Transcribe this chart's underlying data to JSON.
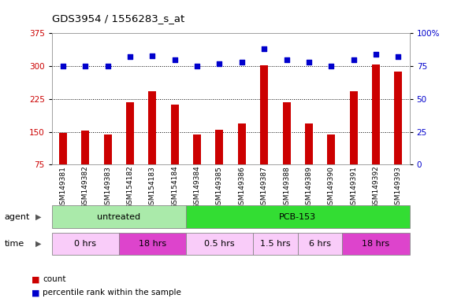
{
  "title": "GDS3954 / 1556283_s_at",
  "samples": [
    "GSM149381",
    "GSM149382",
    "GSM149383",
    "GSM154182",
    "GSM154183",
    "GSM154184",
    "GSM149384",
    "GSM149385",
    "GSM149386",
    "GSM149387",
    "GSM149388",
    "GSM149389",
    "GSM149390",
    "GSM149391",
    "GSM149392",
    "GSM149393"
  ],
  "counts": [
    148,
    153,
    143,
    218,
    242,
    212,
    143,
    155,
    168,
    302,
    218,
    168,
    143,
    242,
    303,
    288
  ],
  "percentile_ranks": [
    75,
    75,
    75,
    82,
    83,
    80,
    75,
    77,
    78,
    88,
    80,
    78,
    75,
    80,
    84,
    82
  ],
  "ylim_left": [
    75,
    375
  ],
  "yticks_left": [
    75,
    150,
    225,
    300,
    375
  ],
  "ylim_right": [
    0,
    100
  ],
  "yticks_right": [
    0,
    25,
    50,
    75,
    100
  ],
  "bar_color": "#cc0000",
  "dot_color": "#0000cc",
  "agent_groups": [
    {
      "label": "untreated",
      "start": 0,
      "end": 6,
      "color": "#aaeaaa"
    },
    {
      "label": "PCB-153",
      "start": 6,
      "end": 16,
      "color": "#33dd33"
    }
  ],
  "time_groups": [
    {
      "label": "0 hrs",
      "start": 0,
      "end": 3,
      "color": "#f9ccf9"
    },
    {
      "label": "18 hrs",
      "start": 3,
      "end": 6,
      "color": "#dd44cc"
    },
    {
      "label": "0.5 hrs",
      "start": 6,
      "end": 9,
      "color": "#f9ccf9"
    },
    {
      "label": "1.5 hrs",
      "start": 9,
      "end": 11,
      "color": "#f9ccf9"
    },
    {
      "label": "6 hrs",
      "start": 11,
      "end": 13,
      "color": "#f9ccf9"
    },
    {
      "label": "18 hrs",
      "start": 13,
      "end": 16,
      "color": "#dd44cc"
    }
  ],
  "grid_color": "#000000",
  "background_color": "#ffffff",
  "tick_label_color_left": "#cc0000",
  "tick_label_color_right": "#0000cc",
  "legend_count_color": "#cc0000",
  "legend_dot_color": "#0000cc"
}
